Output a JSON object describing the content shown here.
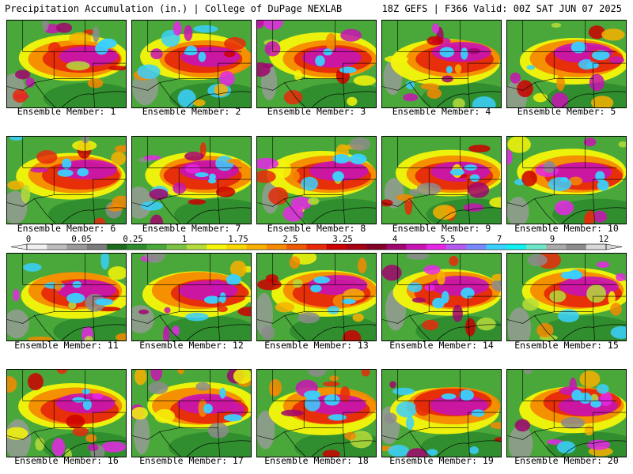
{
  "header": {
    "left_title": "Precipitation Accumulation (in.) | College of DuPage NEXLAB",
    "right_title": "18Z GEFS | F366 Valid: 00Z SAT JUN 07 2025"
  },
  "panel_label_prefix": "Ensemble Member: ",
  "members": [
    1,
    2,
    3,
    4,
    5,
    6,
    7,
    8,
    9,
    10,
    11,
    12,
    13,
    14,
    15,
    16,
    17,
    18,
    19,
    20
  ],
  "colorbar": {
    "tick_labels": [
      "0",
      "0.05",
      "0.25",
      "1",
      "1.75",
      "2.5",
      "3.25",
      "4",
      "5.5",
      "7",
      "9",
      "12"
    ],
    "colors": [
      "#f0f0f0",
      "#bdbdbd",
      "#9a9a9a",
      "#7b7b7b",
      "#1e6b1e",
      "#2e8b2e",
      "#4aa83a",
      "#7cc242",
      "#b6dc3a",
      "#f5f50a",
      "#f8d800",
      "#f7b000",
      "#f58a00",
      "#ee5a00",
      "#e62a0a",
      "#cc0000",
      "#a60012",
      "#800026",
      "#a0066e",
      "#c814b4",
      "#e628e6",
      "#b45af0",
      "#7888ff",
      "#3ad0ff",
      "#10f0f0",
      "#6ee6c8",
      "#aaaaaa",
      "#8c8c8c",
      "#d8d8d8"
    ]
  }
}
